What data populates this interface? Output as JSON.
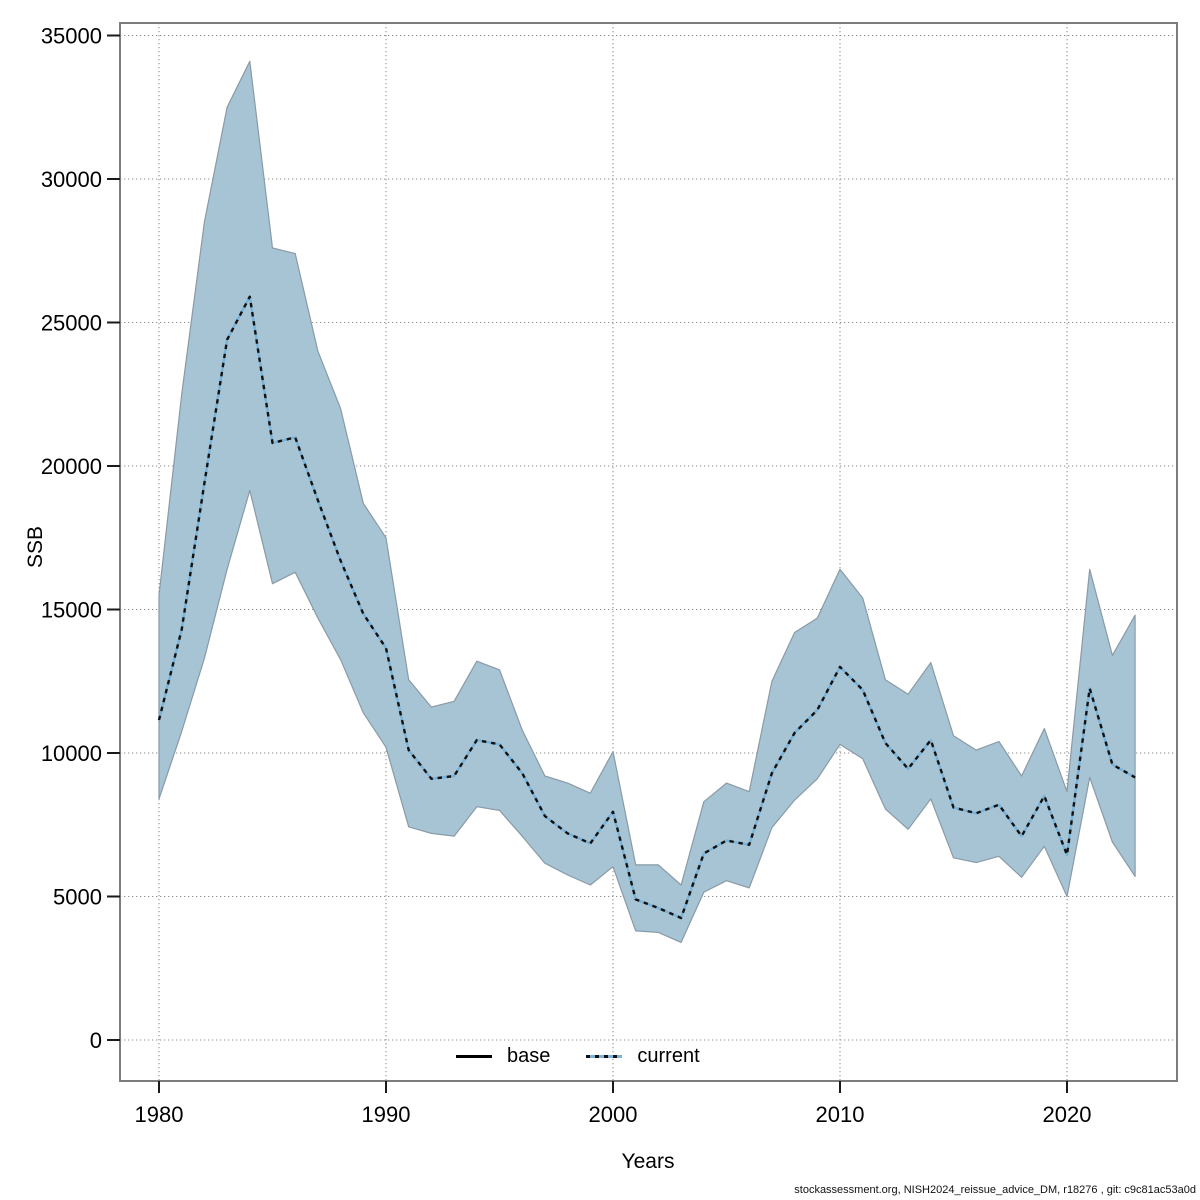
{
  "figure": {
    "y_axis_label": "SSB",
    "x_axis_label": "Years",
    "caption": "stockassessment.org, NISH2024_reissue_advice_DM, r18276 , git: c9c81ac53a0d"
  },
  "legend": {
    "items": [
      {
        "label": "base",
        "style": "solid-black"
      },
      {
        "label": "current",
        "style": "dashed-black-on-blue"
      }
    ]
  },
  "colors": {
    "band_fill": "#a6c4d4",
    "band_edge": "#8a9aa6",
    "current_blue": "#79b2d9",
    "line_dash": "#111111",
    "grid": "#8f8f8f",
    "frame": "#7d7d7d",
    "tick": "#1a1a1a",
    "text": "#000000"
  },
  "chart_data": {
    "type": "line",
    "title": "",
    "xlabel": "Years",
    "ylabel": "SSB",
    "x_ticks": [
      1980,
      1990,
      2000,
      2010,
      2020
    ],
    "y_ticks": [
      0,
      5000,
      10000,
      15000,
      20000,
      25000,
      30000,
      35000
    ],
    "xlim": [
      1978.3,
      2024.9
    ],
    "ylim": [
      -1300,
      35400
    ],
    "grid": "dotted",
    "legend_position": "bottom-center",
    "years": [
      1980,
      1981,
      1982,
      1983,
      1984,
      1985,
      1986,
      1987,
      1988,
      1989,
      1990,
      1991,
      1992,
      1993,
      1994,
      1995,
      1996,
      1997,
      1998,
      1999,
      2000,
      2001,
      2002,
      2003,
      2004,
      2005,
      2006,
      2007,
      2008,
      2009,
      2010,
      2011,
      2012,
      2013,
      2014,
      2015,
      2016,
      2017,
      2018,
      2019,
      2020,
      2021,
      2022,
      2023
    ],
    "series": [
      {
        "name": "current",
        "style": "dashed",
        "values": [
          11150,
          14300,
          19400,
          24400,
          25900,
          20800,
          21000,
          18800,
          16700,
          14850,
          13650,
          10100,
          9100,
          9200,
          10450,
          10300,
          9300,
          7800,
          7200,
          6850,
          7950,
          4900,
          4600,
          4250,
          6500,
          6950,
          6800,
          9300,
          10700,
          11500,
          13000,
          12200,
          10350,
          9450,
          10450,
          8100,
          7900,
          8200,
          7100,
          8500,
          6450,
          12250,
          9600,
          9150
        ]
      }
    ],
    "band": {
      "name": "confidence-interval",
      "upper": [
        15500,
        22500,
        28500,
        32500,
        34100,
        27600,
        27400,
        24000,
        22000,
        18700,
        17500,
        12550,
        11600,
        11800,
        13200,
        12900,
        10800,
        9200,
        8950,
        8600,
        10050,
        6100,
        6100,
        5400,
        8300,
        8950,
        8650,
        12500,
        14200,
        14700,
        16400,
        15400,
        12550,
        12050,
        13150,
        10600,
        10100,
        10400,
        9200,
        10850,
        8650,
        16400,
        13400,
        14800
      ],
      "lower": [
        8400,
        10750,
        13300,
        16400,
        19150,
        15900,
        16300,
        14700,
        13250,
        11400,
        10200,
        7430,
        7200,
        7100,
        8130,
        8000,
        7100,
        6160,
        5750,
        5400,
        6040,
        3800,
        3750,
        3400,
        5150,
        5550,
        5300,
        7400,
        8360,
        9100,
        10300,
        9800,
        8050,
        7340,
        8400,
        6350,
        6180,
        6400,
        5670,
        6750,
        5000,
        9150,
        6900,
        5700
      ]
    }
  }
}
